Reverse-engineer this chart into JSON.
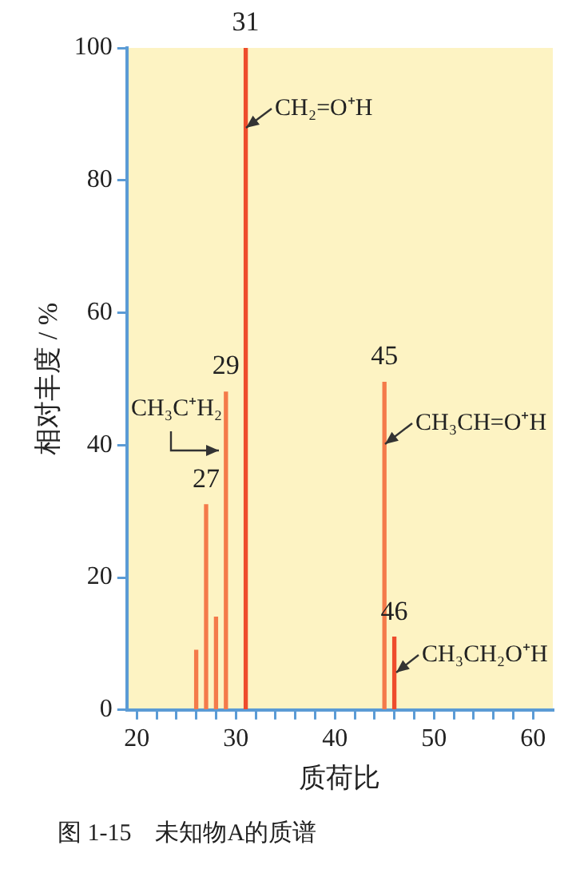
{
  "chart_data": {
    "type": "bar",
    "title": "图 1-15　未知物A的质谱",
    "xlabel": "质荷比",
    "ylabel": "相对丰度 / %",
    "x": [
      26,
      27,
      28,
      29,
      31,
      45,
      46
    ],
    "values": [
      9,
      31,
      14,
      48,
      100,
      49.5,
      11
    ],
    "colors": [
      "#f47a4a",
      "#f47a4a",
      "#f47a4a",
      "#f47a4a",
      "#ee4c2c",
      "#f47a4a",
      "#ee4c2c"
    ],
    "xlim": [
      19,
      62
    ],
    "xticks": [
      20,
      {
        "value": 22,
        "label": null
      },
      {
        "value": 24,
        "label": null
      },
      {
        "value": 26,
        "label": null
      },
      {
        "value": 28,
        "label": null
      },
      30,
      {
        "value": 32,
        "label": null
      },
      {
        "value": 34,
        "label": null
      },
      {
        "value": 36,
        "label": null
      },
      {
        "value": 38,
        "label": null
      },
      40,
      {
        "value": 42,
        "label": null
      },
      {
        "value": 44,
        "label": null
      },
      {
        "value": 46,
        "label": null
      },
      {
        "value": 48,
        "label": null
      },
      50,
      {
        "value": 52,
        "label": null
      },
      {
        "value": 54,
        "label": null
      },
      {
        "value": 56,
        "label": null
      },
      {
        "value": 58,
        "label": null
      },
      60
    ],
    "ylim": [
      0,
      100
    ],
    "yticks": [
      0,
      20,
      40,
      60,
      80,
      100
    ],
    "grid": false,
    "legend": false,
    "annotations": [
      {
        "text": "27",
        "x": 27,
        "y": 31
      },
      {
        "text": "29",
        "x": 29,
        "y": 48
      },
      {
        "text": "31",
        "x": 31,
        "y": 100
      },
      {
        "text": "45",
        "x": 45,
        "y": 49.5
      },
      {
        "text": "46",
        "x": 46,
        "y": 11
      },
      "CH₂=O⁺H",
      "CH₃C⁺H₂",
      "CH₃CH=O⁺H",
      "CH₃CH₂O⁺H"
    ]
  }
}
